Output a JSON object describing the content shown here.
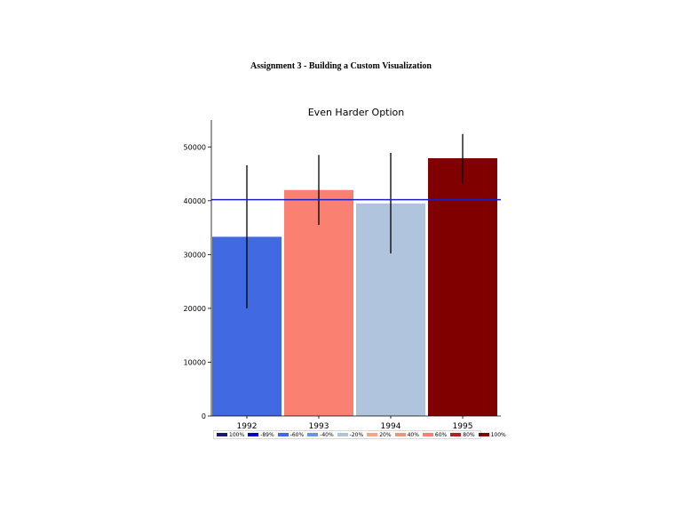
{
  "document": {
    "title": "Assignment 3 - Building a Custom Visualization"
  },
  "chart_data": {
    "type": "bar",
    "title": "Even Harder Option",
    "xlabel": "",
    "ylabel": "",
    "categories": [
      "1992",
      "1993",
      "1994",
      "1995"
    ],
    "values": [
      33300,
      42000,
      39500,
      47900
    ],
    "error_low": [
      20000,
      35500,
      30200,
      43200
    ],
    "error_high": [
      46600,
      48500,
      48900,
      52400
    ],
    "bar_colors": [
      "#4169e1",
      "#fa8072",
      "#b0c4de",
      "#800000"
    ],
    "reference_line": {
      "y": 40200,
      "color": "#1f1fbf"
    },
    "ylim": [
      0,
      55000
    ],
    "yticks": [
      0,
      10000,
      20000,
      30000,
      40000,
      50000
    ],
    "ytick_labels": [
      "0",
      "10000",
      "20000",
      "30000",
      "40000",
      "50000"
    ],
    "grid": false,
    "legend": {
      "placement": "bottom",
      "entries": [
        {
          "label": "100%",
          "color": "#191970"
        },
        {
          "label": "-89%",
          "color": "#0000cd"
        },
        {
          "label": "-60%",
          "color": "#4169e1"
        },
        {
          "label": "-40%",
          "color": "#6495ed"
        },
        {
          "label": "-20%",
          "color": "#b0c4de"
        },
        {
          "label": "20%",
          "color": "#f4a582"
        },
        {
          "label": "40%",
          "color": "#e9967a"
        },
        {
          "label": "60%",
          "color": "#fa8072"
        },
        {
          "label": "80%",
          "color": "#b22222"
        },
        {
          "label": "100%",
          "color": "#800000"
        }
      ]
    }
  }
}
